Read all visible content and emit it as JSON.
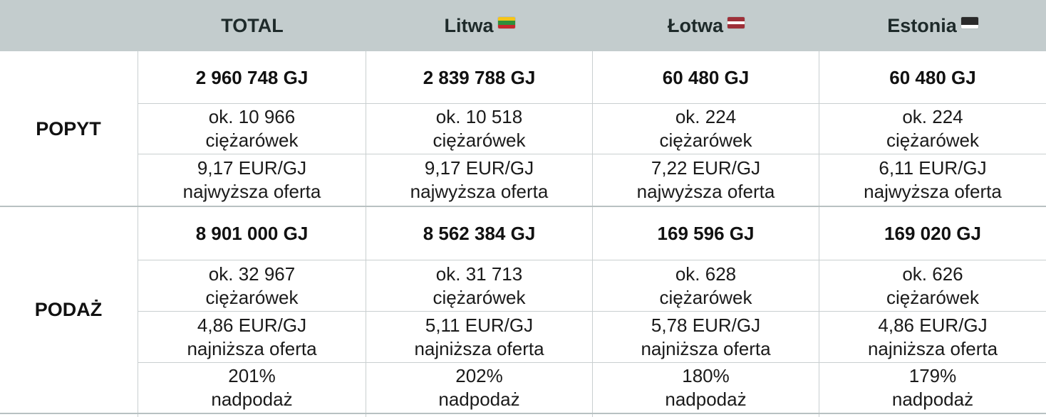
{
  "header": {
    "total": "TOTAL",
    "litwa": "Litwa",
    "lotwa": "Łotwa",
    "estonia": "Estonia",
    "flag_colors": {
      "litwa": [
        "#f5c518",
        "#2f8f3b",
        "#c8262c"
      ],
      "lotwa": [
        "#9e3039",
        "#ffffff",
        "#9e3039"
      ],
      "estonia": [
        "#2a2a2a",
        "#2a2a2a",
        "#ffffff"
      ]
    }
  },
  "popyt": {
    "label": "POPYT",
    "gj": [
      "2 960 748 GJ",
      "2 839 788 GJ",
      "60 480 GJ",
      "60 480 GJ"
    ],
    "trucks_line1": [
      "ok. 10 966",
      "ok. 10 518",
      "ok. 224",
      "ok. 224"
    ],
    "trucks_line2": [
      "ciężarówek",
      "ciężarówek",
      "ciężarówek",
      "ciężarówek"
    ],
    "price_line1": [
      "9,17 EUR/GJ",
      "9,17 EUR/GJ",
      "7,22 EUR/GJ",
      "6,11 EUR/GJ"
    ],
    "price_line2": [
      "najwyższa oferta",
      "najwyższa oferta",
      "najwyższa oferta",
      "najwyższa oferta"
    ]
  },
  "podaz": {
    "label": "PODAŻ",
    "gj": [
      "8 901 000 GJ",
      "8 562 384 GJ",
      "169 596 GJ",
      "169 020 GJ"
    ],
    "trucks_line1": [
      "ok. 32 967",
      "ok. 31 713",
      "ok. 628",
      "ok. 626"
    ],
    "trucks_line2": [
      "ciężarówek",
      "ciężarówek",
      "ciężarówek",
      "ciężarówek"
    ],
    "price_line1": [
      "4,86 EUR/GJ",
      "5,11 EUR/GJ",
      "5,78 EUR/GJ",
      "4,86 EUR/GJ"
    ],
    "price_line2": [
      "najniższa oferta",
      "najniższa oferta",
      "najniższa oferta",
      "najniższa oferta"
    ],
    "surplus_line1": [
      "201%",
      "202%",
      "180%",
      "179%"
    ],
    "surplus_line2": [
      "nadpodaż",
      "nadpodaż",
      "nadpodaż",
      "nadpodaż"
    ]
  }
}
